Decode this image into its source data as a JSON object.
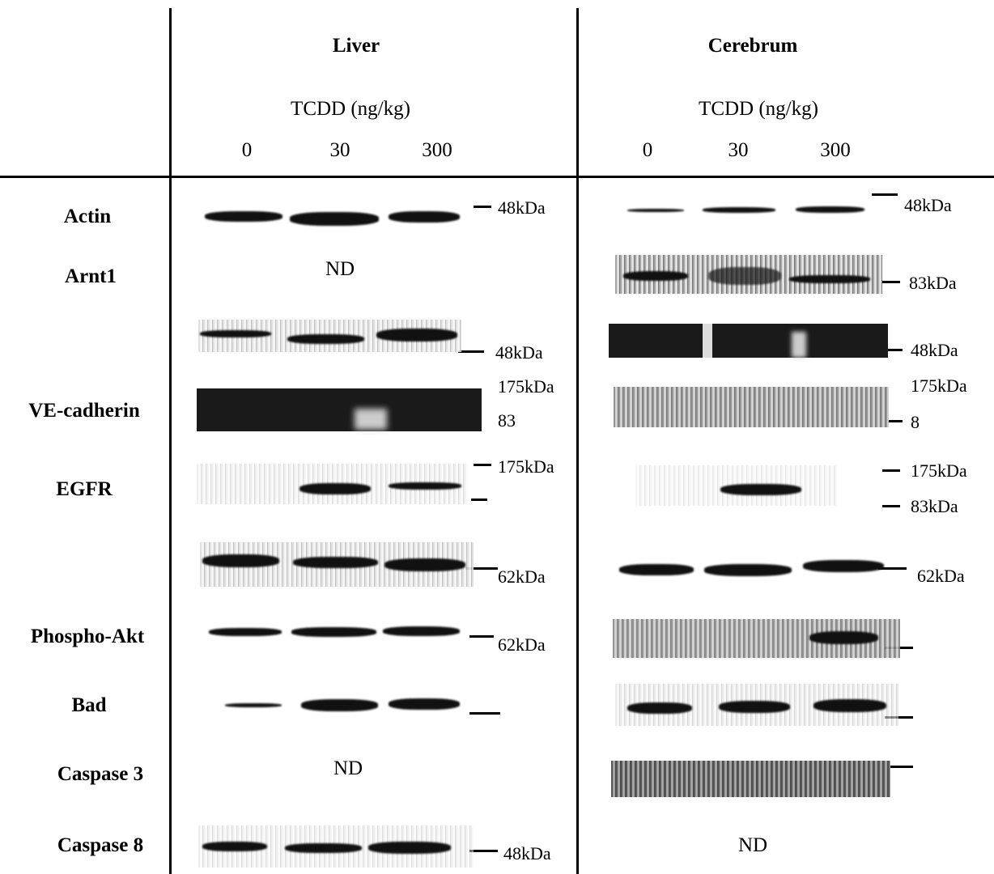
{
  "panels": [
    {
      "title": "Liver",
      "treatment": "TCDD (ng/kg)",
      "doses": [
        "0",
        "30",
        "300"
      ],
      "markers": [
        "48kDa",
        "48kDa",
        "175kDa",
        "83",
        "175kDa",
        "62kDa",
        "62kDa",
        "48kDa"
      ],
      "not_detected": [
        "ND",
        "ND"
      ]
    },
    {
      "title": "Cerebrum",
      "treatment": "TCDD (ng/kg)",
      "doses": [
        "0",
        "30",
        "300"
      ],
      "markers": [
        "48kDa",
        "83kDa",
        "48kDa",
        "175kDa",
        "8",
        "175kDa",
        "83kDa",
        "62kDa"
      ],
      "not_detected": [
        "ND"
      ]
    }
  ],
  "rows": [
    "Actin",
    "Arnt1",
    "VE-cadherin",
    "EGFR",
    "Phospho-Akt",
    "Bad",
    "Caspase 3",
    "Caspase 8"
  ]
}
